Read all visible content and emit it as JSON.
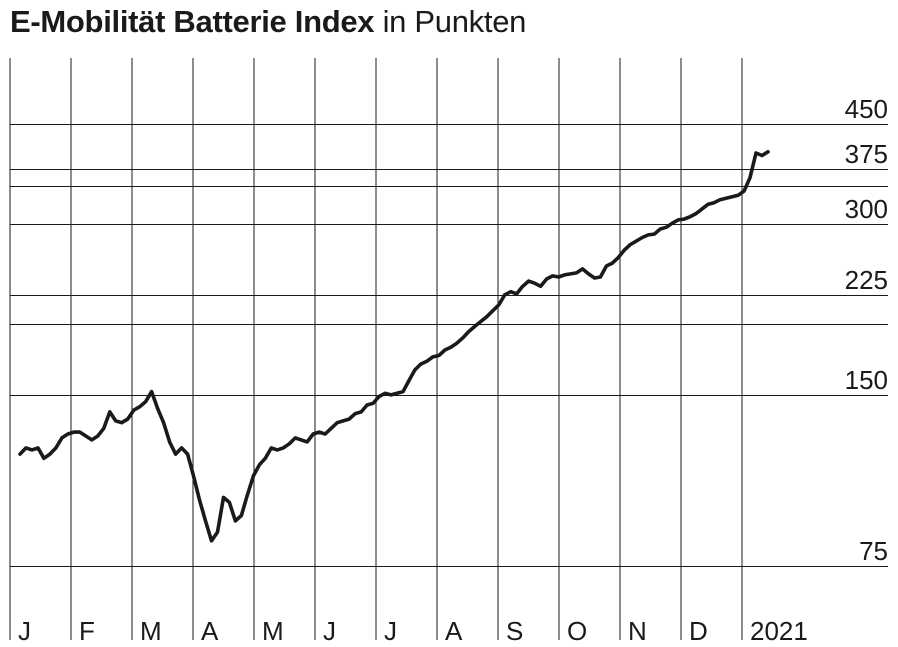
{
  "title": "E-Mobilität Batterie Index",
  "subtitle": "in Punkten",
  "chart_data": {
    "type": "line",
    "title": "E-Mobilität Batterie Index",
    "subtitle": "in Punkten",
    "ylabel": "",
    "xlabel": "",
    "y_scale": "log",
    "ylim": [
      68,
      490
    ],
    "y_ticks": [
      75,
      150,
      225,
      300,
      375,
      450
    ],
    "y_gridlines": [
      75,
      150,
      200,
      225,
      300,
      350,
      375,
      450
    ],
    "x_labels": [
      "J",
      "F",
      "M",
      "A",
      "M",
      "J",
      "J",
      "A",
      "S",
      "O",
      "N",
      "D",
      "2021"
    ],
    "grid": true,
    "line_color": "#1a1a1a",
    "series": [
      {
        "values": [
          118,
          121,
          120,
          121,
          116,
          118,
          121,
          126,
          128,
          129,
          129,
          127,
          125,
          127,
          131,
          140,
          135,
          134,
          136,
          141,
          143,
          146,
          152,
          142,
          134,
          124,
          118,
          121,
          118,
          108,
          98,
          90,
          83,
          86,
          99,
          97,
          90,
          92,
          100,
          108,
          113,
          116,
          121,
          120,
          121,
          123,
          126,
          125,
          124,
          128,
          129,
          128,
          131,
          134,
          135,
          136,
          139,
          140,
          144,
          145,
          149,
          151,
          150,
          151,
          152,
          159,
          166,
          170,
          172,
          175,
          176,
          180,
          182,
          185,
          189,
          194,
          198,
          202,
          206,
          211,
          216,
          225,
          228,
          226,
          233,
          238,
          236,
          233,
          240,
          243,
          242,
          244,
          245,
          246,
          250,
          245,
          241,
          242,
          253,
          256,
          262,
          270,
          276,
          280,
          284,
          287,
          288,
          294,
          296,
          301,
          305,
          306,
          309,
          313,
          319,
          325,
          327,
          331,
          333,
          335,
          337,
          343,
          362,
          400,
          396,
          402
        ]
      }
    ]
  }
}
